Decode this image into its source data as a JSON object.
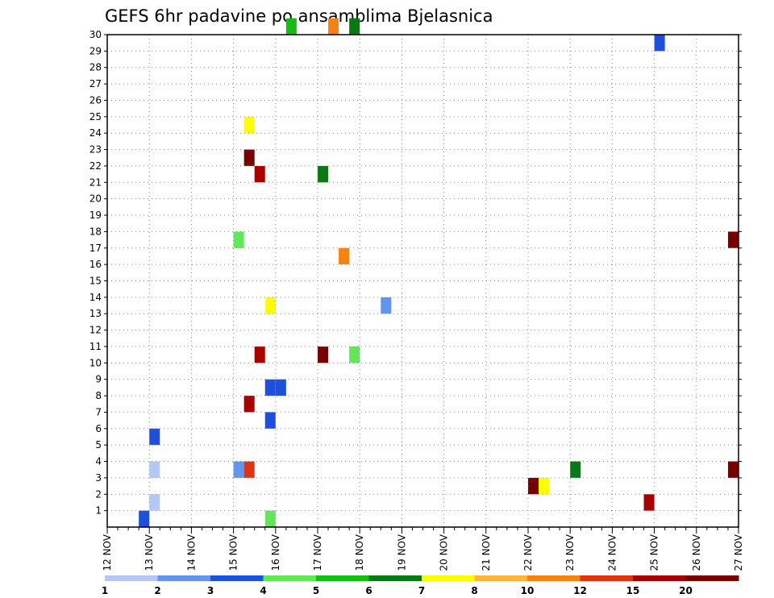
{
  "chart_data": {
    "type": "heatmap",
    "title": "GEFS 6hr padavine po ansamblima Bjelasnica",
    "xlabel": "",
    "ylabel": "",
    "x_ticks": [
      "12 NOV",
      "13 NOV",
      "14 NOV",
      "15 NOV",
      "16 NOV",
      "17 NOV",
      "18 NOV",
      "19 NOV",
      "20 NOV",
      "21 NOV",
      "22 NOV",
      "23 NOV",
      "24 NOV",
      "25 NOV",
      "26 NOV",
      "27 NOV"
    ],
    "x_range": [
      "12 NOV 00:00",
      "27 NOV 00:00"
    ],
    "y_ticks": [
      1,
      2,
      3,
      4,
      5,
      6,
      7,
      8,
      9,
      10,
      11,
      12,
      13,
      14,
      15,
      16,
      17,
      18,
      19,
      20,
      21,
      22,
      23,
      24,
      25,
      26,
      27,
      28,
      29,
      30
    ],
    "ylim": [
      0,
      30
    ],
    "time_step": "6hr",
    "grid": "dotted",
    "colorbar": {
      "thresholds": [
        1,
        2,
        3,
        4,
        5,
        6,
        7,
        8,
        10,
        12,
        15,
        20
      ],
      "labels": [
        "1",
        "2",
        "3",
        "4",
        "5",
        "6",
        "7",
        "8",
        "10",
        "12",
        "15",
        "20"
      ],
      "colors": [
        "#b4c8f5",
        "#6495ed",
        "#1e50dc",
        "#64e65a",
        "#14be14",
        "#0a7814",
        "#ffff00",
        "#ffb43c",
        "#f58214",
        "#e13214",
        "#aa0000",
        "#780000"
      ]
    },
    "precip_mm": [
      {
        "day": "12 NOV",
        "hour": 18,
        "member": 0,
        "value": 3.2
      },
      {
        "day": "15 NOV",
        "hour": 18,
        "member": 0,
        "value": 4.5
      },
      {
        "day": "13 NOV",
        "hour": 0,
        "member": 1,
        "value": 1.5
      },
      {
        "day": "13 NOV",
        "hour": 0,
        "member": 3,
        "value": 1.5
      },
      {
        "day": "15 NOV",
        "hour": 0,
        "member": 3,
        "value": 2.2
      },
      {
        "day": "15 NOV",
        "hour": 6,
        "member": 3,
        "value": 14.0
      },
      {
        "day": "13 NOV",
        "hour": 0,
        "member": 5,
        "value": 3.1
      },
      {
        "day": "15 NOV",
        "hour": 6,
        "member": 7,
        "value": 15.0
      },
      {
        "day": "15 NOV",
        "hour": 18,
        "member": 6,
        "value": 3.1
      },
      {
        "day": "15 NOV",
        "hour": 18,
        "member": 8,
        "value": 3.5
      },
      {
        "day": "16 NOV",
        "hour": 0,
        "member": 8,
        "value": 3.2
      },
      {
        "day": "15 NOV",
        "hour": 12,
        "member": 10,
        "value": 16.0
      },
      {
        "day": "17 NOV",
        "hour": 0,
        "member": 10,
        "value": 21.0
      },
      {
        "day": "17 NOV",
        "hour": 18,
        "member": 10,
        "value": 4.2
      },
      {
        "day": "15 NOV",
        "hour": 18,
        "member": 13,
        "value": 7.5
      },
      {
        "day": "18 NOV",
        "hour": 12,
        "member": 13,
        "value": 2.5
      },
      {
        "day": "15 NOV",
        "hour": 0,
        "member": 17,
        "value": 4.4
      },
      {
        "day": "17 NOV",
        "hour": 12,
        "member": 16,
        "value": 10.5
      },
      {
        "day": "15 NOV",
        "hour": 12,
        "member": 21,
        "value": 16.5
      },
      {
        "day": "17 NOV",
        "hour": 0,
        "member": 21,
        "value": 6.5
      },
      {
        "day": "15 NOV",
        "hour": 6,
        "member": 22,
        "value": 20.5
      },
      {
        "day": "15 NOV",
        "hour": 6,
        "member": 24,
        "value": 7.5
      },
      {
        "day": "16 NOV",
        "hour": 6,
        "member": 30,
        "value": 5.2
      },
      {
        "day": "17 NOV",
        "hour": 6,
        "member": 30,
        "value": 10.5
      },
      {
        "day": "17 NOV",
        "hour": 18,
        "member": 30,
        "value": 6.5
      },
      {
        "day": "22 NOV",
        "hour": 0,
        "member": 2,
        "value": 20.5
      },
      {
        "day": "22 NOV",
        "hour": 6,
        "member": 2,
        "value": 7.5
      },
      {
        "day": "23 NOV",
        "hour": 0,
        "member": 3,
        "value": 6.2
      },
      {
        "day": "24 NOV",
        "hour": 18,
        "member": 1,
        "value": 16.0
      },
      {
        "day": "26 NOV",
        "hour": 18,
        "member": 3,
        "value": 20.5
      },
      {
        "day": "26 NOV",
        "hour": 18,
        "member": 17,
        "value": 20.5
      },
      {
        "day": "25 NOV",
        "hour": 0,
        "member": 29,
        "value": 3.5
      }
    ]
  }
}
